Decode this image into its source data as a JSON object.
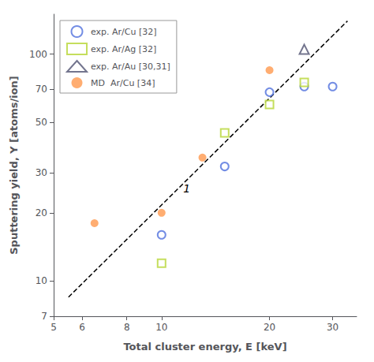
{
  "chart_data": {
    "type": "scatter",
    "xlabel": "Total cluster energy, E [keV]",
    "ylabel": "Sputtering yield, Y [atoms/ion]",
    "log": true,
    "grid": false,
    "legend": "upper left",
    "xlim": [
      5,
      35
    ],
    "ylim": [
      7,
      150
    ],
    "xticks": [
      5,
      6,
      8,
      10,
      20,
      30
    ],
    "yticks": [
      7,
      10,
      20,
      30,
      50,
      70,
      100
    ],
    "series": [
      {
        "type": "line",
        "line_style": "dashed",
        "color": "black",
        "x": [
          5.5,
          33
        ],
        "values": [
          8.5,
          140
        ]
      },
      {
        "name": "exp. Ar/Cu [32]",
        "marker": "circle-open",
        "x": [
          10,
          15,
          20,
          25,
          30
        ],
        "values": [
          16,
          32,
          68,
          72,
          72
        ]
      },
      {
        "name": "exp. Ar/Ag [32]",
        "marker": "square-open",
        "x": [
          10,
          15,
          20,
          25
        ],
        "values": [
          12,
          45,
          60,
          75
        ]
      },
      {
        "name": "exp. Ar/Au [30,31]",
        "marker": "triangle-open",
        "x": [
          25
        ],
        "values": [
          105
        ]
      },
      {
        "name": "MD  Ar/Cu [34]",
        "marker": "circle",
        "x": [
          6.5,
          10,
          13,
          20
        ],
        "values": [
          18,
          20,
          35,
          85
        ]
      }
    ],
    "annotations": [
      {
        "text": "1",
        "x": 11.5,
        "y": 27
      }
    ]
  }
}
